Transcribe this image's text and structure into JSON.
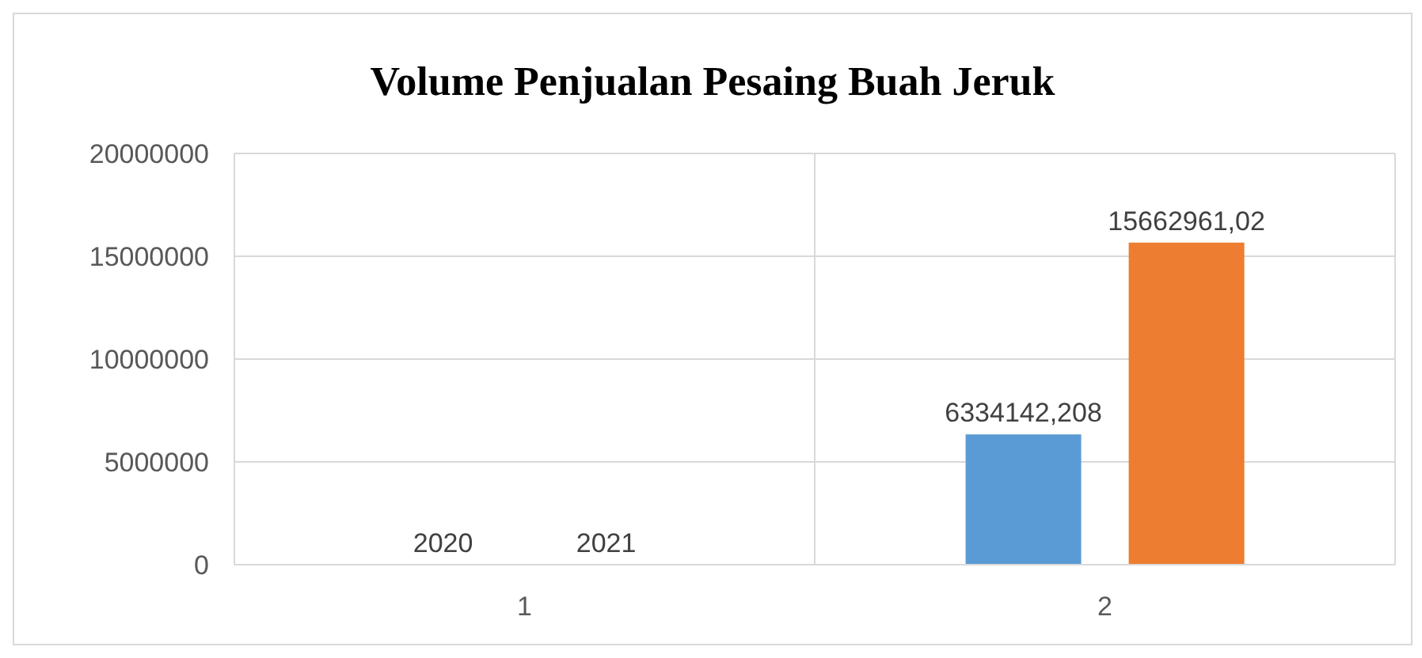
{
  "chart_data": {
    "type": "bar",
    "title": "Volume Penjualan Pesaing Buah Jeruk",
    "categories": [
      "1",
      "2"
    ],
    "series": [
      {
        "color": "#5b9bd5",
        "values": [
          2020,
          6334142.208
        ],
        "value_labels": [
          "2020",
          "6334142,208"
        ]
      },
      {
        "color": "#ed7d31",
        "values": [
          2021,
          15662961.02
        ],
        "value_labels": [
          "2021",
          "15662961,02"
        ]
      }
    ],
    "ylim": [
      0,
      20000000
    ],
    "yticks": [
      0,
      5000000,
      10000000,
      15000000,
      20000000
    ],
    "grid": true
  }
}
